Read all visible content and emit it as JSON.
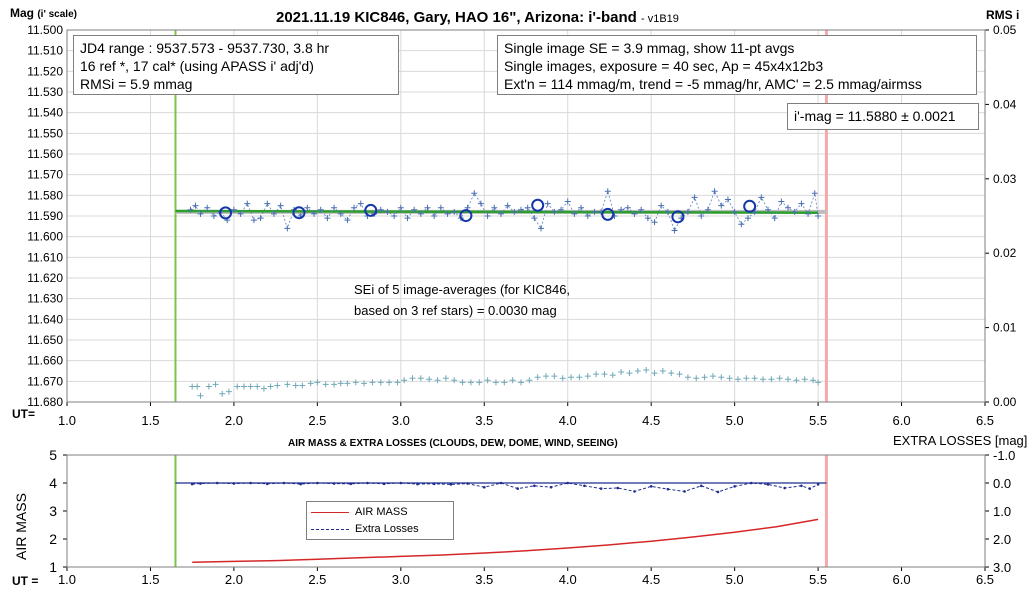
{
  "chart_data": [
    {
      "type": "scatter",
      "title": "2021.11.19 KIC846, Gary, HAO 16\", Arizona: i'-band",
      "version": "- v1B19",
      "ylabel_left_main": "Mag",
      "ylabel_left_sub": "(i' scale)",
      "ylabel_right": "RMS i",
      "xlabel": "UT=",
      "xlim": [
        1.0,
        6.5
      ],
      "xticks": [
        "1.0",
        "1.5",
        "2.0",
        "2.5",
        "3.0",
        "3.5",
        "4.0",
        "4.5",
        "5.0",
        "5.5",
        "6.0",
        "6.5"
      ],
      "ylim": [
        11.68,
        11.5
      ],
      "yticks": [
        "11.500",
        "11.510",
        "11.520",
        "11.530",
        "11.540",
        "11.550",
        "11.560",
        "11.570",
        "11.580",
        "11.590",
        "11.600",
        "11.610",
        "11.620",
        "11.630",
        "11.640",
        "11.650",
        "11.660",
        "11.670",
        "11.680"
      ],
      "y2lim": [
        0.0,
        0.05
      ],
      "y2ticks": [
        "0.00",
        "0.01",
        "0.02",
        "0.03",
        "0.04",
        "0.05"
      ],
      "grid": true,
      "vlines": [
        1.65,
        5.55
      ],
      "info_box_left": [
        "JD4 range : 9537.573 - 9537.730, 3.8  hr",
        "16 ref *, 17 cal* (using APASS i' adj'd)",
        "RMSi = 5.9 mmag"
      ],
      "info_box_right": [
        "Single image SE = 3.9 mmag, show 11-pt avgs",
        "Single images, exposure = 40 sec, Ap = 45x4x12b3",
        "Ext'n = 114 mmag/m, trend = -5 mmag/hr, AMC' = 2.5 mmag/airmss"
      ],
      "mag_box": "i'-mag = 11.5880 ± 0.0021",
      "sei_note": [
        "SEi of 5 image-averages (for KIC846,",
        "based on 3 ref stars) = 0.0030 mag"
      ],
      "mean_mag": 11.588,
      "trend_line": {
        "x": [
          1.65,
          5.5
        ],
        "y": [
          11.5876,
          11.5884
        ]
      },
      "averages": {
        "x": [
          1.95,
          2.39,
          2.82,
          3.39,
          3.82,
          4.24,
          4.66,
          5.09
        ],
        "y": [
          11.5885,
          11.5884,
          11.5873,
          11.5898,
          11.5848,
          11.5892,
          11.5904,
          11.5853
        ]
      },
      "singles": {
        "x": [
          1.74,
          1.77,
          1.8,
          1.84,
          1.88,
          1.92,
          1.96,
          2.0,
          2.04,
          2.08,
          2.12,
          2.16,
          2.2,
          2.24,
          2.28,
          2.32,
          2.36,
          2.4,
          2.44,
          2.48,
          2.52,
          2.56,
          2.6,
          2.64,
          2.68,
          2.72,
          2.76,
          2.8,
          2.84,
          2.88,
          2.92,
          2.96,
          3.0,
          3.04,
          3.08,
          3.12,
          3.16,
          3.2,
          3.24,
          3.28,
          3.32,
          3.36,
          3.4,
          3.44,
          3.48,
          3.52,
          3.56,
          3.6,
          3.64,
          3.68,
          3.72,
          3.76,
          3.8,
          3.84,
          3.88,
          3.92,
          3.96,
          4.0,
          4.04,
          4.08,
          4.12,
          4.16,
          4.2,
          4.24,
          4.28,
          4.32,
          4.36,
          4.4,
          4.44,
          4.48,
          4.52,
          4.56,
          4.6,
          4.64,
          4.68,
          4.72,
          4.76,
          4.8,
          4.84,
          4.88,
          4.92,
          4.96,
          5.0,
          5.04,
          5.08,
          5.12,
          5.16,
          5.2,
          5.24,
          5.28,
          5.32,
          5.36,
          5.4,
          5.44,
          5.48,
          5.5
        ],
        "y": [
          11.587,
          11.585,
          11.589,
          11.586,
          11.59,
          11.588,
          11.592,
          11.587,
          11.589,
          11.584,
          11.592,
          11.591,
          11.584,
          11.589,
          11.585,
          11.596,
          11.587,
          11.59,
          11.586,
          11.589,
          11.587,
          11.591,
          11.586,
          11.589,
          11.592,
          11.586,
          11.584,
          11.59,
          11.589,
          11.587,
          11.588,
          11.59,
          11.586,
          11.591,
          11.587,
          11.589,
          11.586,
          11.59,
          11.586,
          11.589,
          11.588,
          11.591,
          11.586,
          11.579,
          11.584,
          11.59,
          11.586,
          11.589,
          11.585,
          11.588,
          11.587,
          11.586,
          11.591,
          11.596,
          11.584,
          11.588,
          11.587,
          11.583,
          11.589,
          11.586,
          11.59,
          11.588,
          11.588,
          11.578,
          11.59,
          11.587,
          11.586,
          11.589,
          11.587,
          11.591,
          11.593,
          11.585,
          11.588,
          11.597,
          11.591,
          11.588,
          11.581,
          11.59,
          11.587,
          11.578,
          11.585,
          11.582,
          11.588,
          11.594,
          11.591,
          11.588,
          11.581,
          11.587,
          11.591,
          11.583,
          11.586,
          11.588,
          11.584,
          11.589,
          11.579,
          11.59
        ]
      },
      "comparison_star": {
        "x": [
          1.75,
          1.78,
          1.8,
          1.85,
          1.89,
          1.93,
          1.97,
          2.02,
          2.06,
          2.1,
          2.14,
          2.18,
          2.22,
          2.26,
          2.32,
          2.37,
          2.41,
          2.46,
          2.5,
          2.55,
          2.6,
          2.64,
          2.68,
          2.73,
          2.78,
          2.83,
          2.88,
          2.93,
          2.98,
          3.02,
          3.07,
          3.12,
          3.17,
          3.22,
          3.27,
          3.32,
          3.37,
          3.42,
          3.47,
          3.52,
          3.57,
          3.62,
          3.67,
          3.72,
          3.77,
          3.82,
          3.87,
          3.92,
          3.97,
          4.02,
          4.07,
          4.12,
          4.17,
          4.22,
          4.27,
          4.32,
          4.37,
          4.42,
          4.47,
          4.52,
          4.57,
          4.62,
          4.67,
          4.72,
          4.77,
          4.82,
          4.87,
          4.92,
          4.97,
          5.02,
          5.07,
          5.12,
          5.17,
          5.22,
          5.27,
          5.32,
          5.37,
          5.42,
          5.47,
          5.5
        ],
        "y": [
          11.6725,
          11.6725,
          11.677,
          11.6725,
          11.6715,
          11.676,
          11.675,
          11.6725,
          11.6725,
          11.6725,
          11.6725,
          11.6735,
          11.6725,
          11.672,
          11.6715,
          11.672,
          11.672,
          11.671,
          11.6705,
          11.6715,
          11.6715,
          11.671,
          11.671,
          11.6705,
          11.671,
          11.6705,
          11.6705,
          11.6705,
          11.6705,
          11.6695,
          11.6685,
          11.6685,
          11.669,
          11.6695,
          11.6685,
          11.6695,
          11.6705,
          11.6705,
          11.6705,
          11.6695,
          11.6705,
          11.6705,
          11.6695,
          11.6705,
          11.6695,
          11.668,
          11.6675,
          11.6675,
          11.6685,
          11.668,
          11.668,
          11.6675,
          11.6665,
          11.6665,
          11.667,
          11.6655,
          11.666,
          11.665,
          11.6645,
          11.666,
          11.665,
          11.666,
          11.6665,
          11.668,
          11.6685,
          11.668,
          11.6675,
          11.668,
          11.6685,
          11.669,
          11.6685,
          11.6685,
          11.669,
          11.669,
          11.6685,
          11.669,
          11.6695,
          11.669,
          11.6695,
          11.6705
        ]
      }
    },
    {
      "type": "line",
      "title": "AIR MASS & EXTRA LOSSES (CLOUDS, DEW, DOME, WIND, SEEING)",
      "ylabel_left": "AIR MASS",
      "ylabel_right": "EXTRA LOSSES [mag]",
      "xlabel": "UT =",
      "xlim": [
        1.0,
        6.5
      ],
      "xticks": [
        "1.0",
        "1.5",
        "2.0",
        "2.5",
        "3.0",
        "3.5",
        "4.0",
        "4.5",
        "5.0",
        "5.5",
        "6.0",
        "6.5"
      ],
      "ylim": [
        1,
        5
      ],
      "yticks": [
        "1",
        "2",
        "3",
        "4",
        "5"
      ],
      "y2lim": [
        -1.0,
        3.0
      ],
      "y2ticks": [
        "-1.0",
        "0.0",
        "1.0",
        "2.0",
        "3.0"
      ],
      "legend": [
        "AIR MASS",
        "Extra Losses"
      ],
      "legend_position": "center",
      "vlines": [
        1.65,
        5.55
      ],
      "series": [
        {
          "name": "AIR MASS",
          "color": "#d62728",
          "x": [
            1.75,
            2.0,
            2.25,
            2.5,
            2.75,
            3.0,
            3.25,
            3.5,
            3.75,
            4.0,
            4.25,
            4.5,
            4.75,
            5.0,
            5.25,
            5.5
          ],
          "y": [
            1.17,
            1.2,
            1.23,
            1.28,
            1.33,
            1.38,
            1.43,
            1.5,
            1.58,
            1.68,
            1.79,
            1.92,
            2.07,
            2.24,
            2.44,
            2.7
          ]
        },
        {
          "name": "Extra Losses",
          "color": "#1f2d8f",
          "x": [
            1.75,
            1.8,
            1.9,
            2.0,
            2.1,
            2.2,
            2.3,
            2.4,
            2.5,
            2.6,
            2.7,
            2.8,
            2.9,
            3.0,
            3.1,
            3.2,
            3.3,
            3.4,
            3.5,
            3.6,
            3.7,
            3.8,
            3.9,
            4.0,
            4.1,
            4.2,
            4.3,
            4.4,
            4.5,
            4.6,
            4.7,
            4.8,
            4.9,
            5.0,
            5.1,
            5.2,
            5.3,
            5.4,
            5.45,
            5.5
          ],
          "y": [
            0.04,
            0.02,
            0.0,
            0.02,
            0.0,
            0.03,
            0.0,
            0.04,
            0.0,
            0.02,
            0.03,
            0.0,
            0.03,
            0.0,
            0.04,
            0.03,
            0.05,
            0.02,
            0.15,
            0.0,
            0.2,
            0.1,
            0.15,
            0.0,
            0.1,
            0.2,
            0.18,
            0.3,
            0.12,
            0.22,
            0.3,
            0.1,
            0.32,
            0.12,
            0.0,
            0.05,
            0.18,
            0.1,
            0.2,
            0.05
          ]
        }
      ],
      "reference_line": {
        "name": "",
        "y": 0.0,
        "color": "#1f2d8f"
      }
    }
  ]
}
